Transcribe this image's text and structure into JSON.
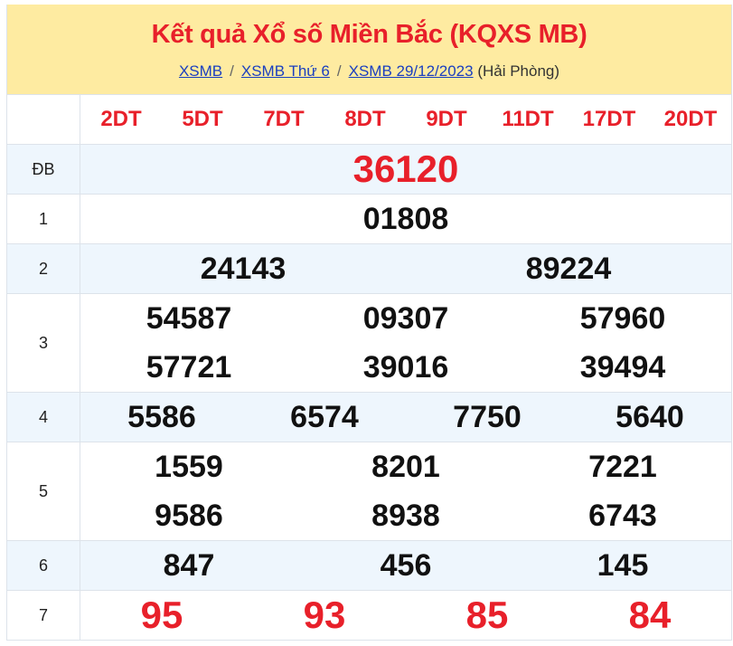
{
  "header": {
    "title": "Kết quả Xổ số Miền Bắc (KQXS MB)",
    "breadcrumb": [
      {
        "label": "XSMB"
      },
      {
        "label": "XSMB Thứ 6"
      },
      {
        "label": "XSMB 29/12/2023"
      }
    ],
    "separator": "/",
    "region": "(Hải Phòng)"
  },
  "codes": [
    "2DT",
    "5DT",
    "7DT",
    "8DT",
    "9DT",
    "11DT",
    "17DT",
    "20DT"
  ],
  "prizes": [
    {
      "label": "ĐB",
      "cols": 1,
      "values": [
        "36120"
      ]
    },
    {
      "label": "1",
      "cols": 1,
      "values": [
        "01808"
      ]
    },
    {
      "label": "2",
      "cols": 2,
      "values": [
        "24143",
        "89224"
      ]
    },
    {
      "label": "3",
      "cols": 3,
      "values": [
        "54587",
        "09307",
        "57960",
        "57721",
        "39016",
        "39494"
      ]
    },
    {
      "label": "4",
      "cols": 4,
      "values": [
        "5586",
        "6574",
        "7750",
        "5640"
      ]
    },
    {
      "label": "5",
      "cols": 3,
      "values": [
        "1559",
        "8201",
        "7221",
        "9586",
        "8938",
        "6743"
      ]
    },
    {
      "label": "6",
      "cols": 3,
      "values": [
        "847",
        "456",
        "145"
      ]
    },
    {
      "label": "7",
      "cols": 4,
      "values": [
        "95",
        "93",
        "85",
        "84"
      ]
    }
  ],
  "colors": {
    "accent": "#e8202a",
    "header_bg": "#feeba1",
    "alt_row": "#eef6fd",
    "link": "#1a3fc0"
  }
}
